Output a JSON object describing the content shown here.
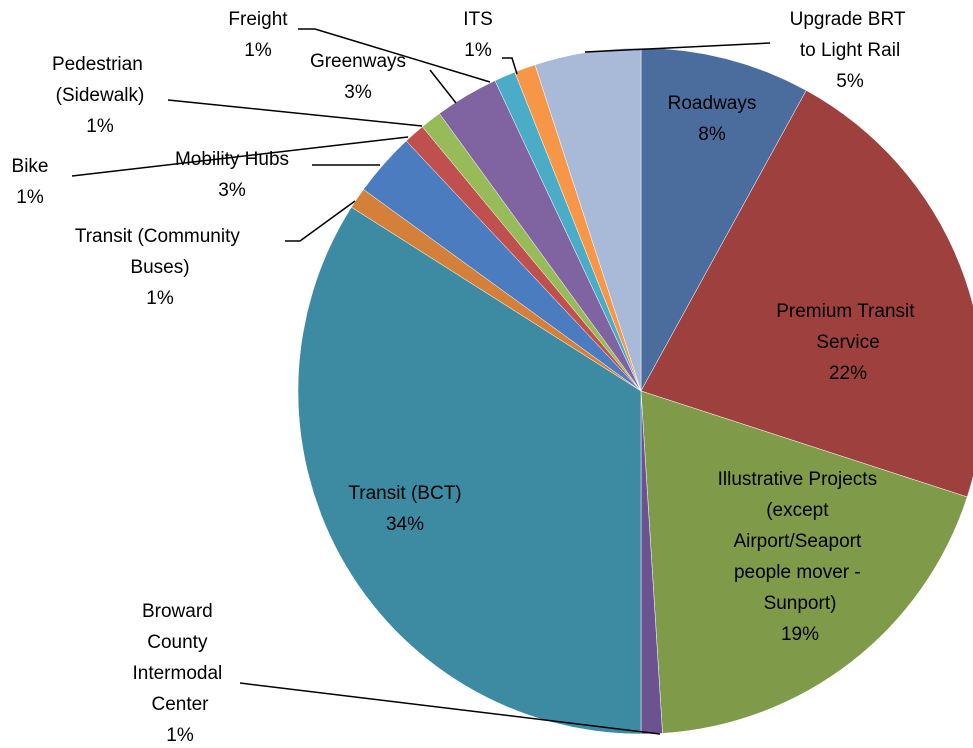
{
  "chart_data": {
    "type": "pie",
    "categories": [
      "Roadways",
      "Premium Transit Service",
      "Illustrative Projects (except Airport/Seaport people mover - Sunport)",
      "Broward County Intermodal Center",
      "Transit (BCT)",
      "Transit (Community Buses)",
      "Mobility Hubs",
      "Bike",
      "Pedestrian (Sidewalk)",
      "Greenways",
      "Freight",
      "ITS",
      "Upgrade BRT to Light Rail"
    ],
    "values": [
      8,
      22,
      19,
      1,
      34,
      1,
      3,
      1,
      1,
      3,
      1,
      1,
      5
    ],
    "value_labels": [
      "8%",
      "22%",
      "19%",
      "1%",
      "34%",
      "1%",
      "3%",
      "1%",
      "1%",
      "3%",
      "1%",
      "1%",
      "5%"
    ],
    "colors": [
      "#4a6d9e",
      "#9e413e",
      "#7f9a48",
      "#6b5290",
      "#3d8ba2",
      "#d4803a",
      "#4a7cbf",
      "#c0504d",
      "#98bb59",
      "#8064a2",
      "#4aacc6",
      "#f79646",
      "#a9b9d8"
    ]
  }
}
